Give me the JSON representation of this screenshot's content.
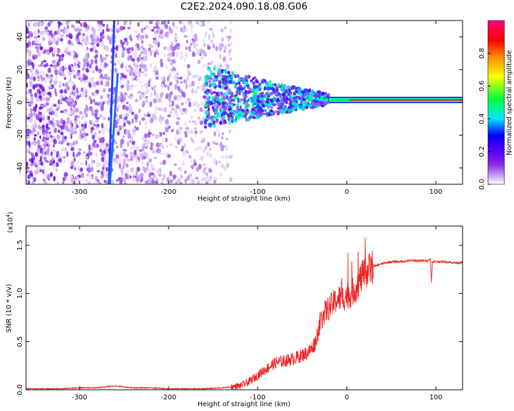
{
  "figure": {
    "title": "C2E2.2024.090.18.08.G06"
  },
  "chart_data": [
    {
      "type": "heatmap",
      "xlabel": "Height of straight line (km)",
      "ylabel": "Frequency (Hz)",
      "xlim": [
        -360,
        130
      ],
      "ylim": [
        -50,
        50
      ],
      "x_ticks": [
        -300,
        -200,
        -100,
        0,
        100
      ],
      "y_ticks": [
        -40,
        -20,
        0,
        20,
        40
      ],
      "colorbar": {
        "label": "Normalized spectral amplitude",
        "range": [
          0.0,
          1.0
        ],
        "ticks": [
          "0.0",
          "0.2",
          "0.4",
          "0.6",
          "0.8"
        ],
        "colors": [
          "#ffffff",
          "#c9a4f5",
          "#8a2be2",
          "#5b00ff",
          "#0000ff",
          "#00e5ff",
          "#00ff40",
          "#ffff00",
          "#ff8800",
          "#ff0000",
          "#ff0080"
        ]
      },
      "features": {
        "signal_band_frequency_hz": 1.5,
        "noise_extent_km": [
          -360,
          -130
        ],
        "scatter_transition_km": [
          -160,
          -20
        ],
        "steady_signal_from_km": -20,
        "diagonal_streak_1": {
          "x_start": -267,
          "y_start": -50,
          "x_end": -261,
          "y_end": 50
        },
        "diagonal_streak_2": {
          "x_start": -266,
          "y_start": -50,
          "x_end": -257,
          "y_end": 18
        }
      },
      "grid": false
    },
    {
      "type": "line",
      "xlabel": "Height of straight line (km)",
      "ylabel": "SNR (10 * v/v)",
      "yscale_label": "(x10",
      "yscale_exp": "4",
      "yscale_close": ")",
      "xlim": [
        -360,
        130
      ],
      "ylim": [
        0.0,
        1.7
      ],
      "x_ticks": [
        -300,
        -200,
        -100,
        0,
        100
      ],
      "y_ticks": [
        "0.0",
        "0.5",
        "1.0",
        "1.5"
      ],
      "color": "#ee2222",
      "series": [
        {
          "x": [
            -360,
            -340,
            -320,
            -300,
            -280,
            -260,
            -250,
            -240,
            -220,
            -200,
            -180,
            -160,
            -140,
            -120,
            -110,
            -100,
            -90,
            -80,
            -70,
            -60,
            -50,
            -45,
            -40,
            -35,
            -30,
            -25,
            -20,
            -15,
            -10,
            -5,
            0,
            5,
            10,
            15,
            20,
            25,
            30,
            40,
            50,
            60,
            70,
            80,
            90,
            94,
            95,
            96,
            100,
            110,
            120,
            130
          ],
          "values": [
            0.01,
            0.01,
            0.01,
            0.02,
            0.02,
            0.04,
            0.03,
            0.02,
            0.02,
            0.01,
            0.01,
            0.01,
            0.02,
            0.04,
            0.08,
            0.15,
            0.22,
            0.28,
            0.3,
            0.32,
            0.36,
            0.38,
            0.42,
            0.5,
            0.7,
            0.8,
            0.85,
            0.9,
            0.95,
            0.95,
            0.98,
            1.0,
            1.05,
            1.15,
            1.2,
            1.25,
            1.28,
            1.31,
            1.33,
            1.33,
            1.34,
            1.34,
            1.34,
            1.36,
            1.1,
            1.33,
            1.33,
            1.33,
            1.32,
            1.32
          ]
        }
      ],
      "grid": false
    }
  ]
}
